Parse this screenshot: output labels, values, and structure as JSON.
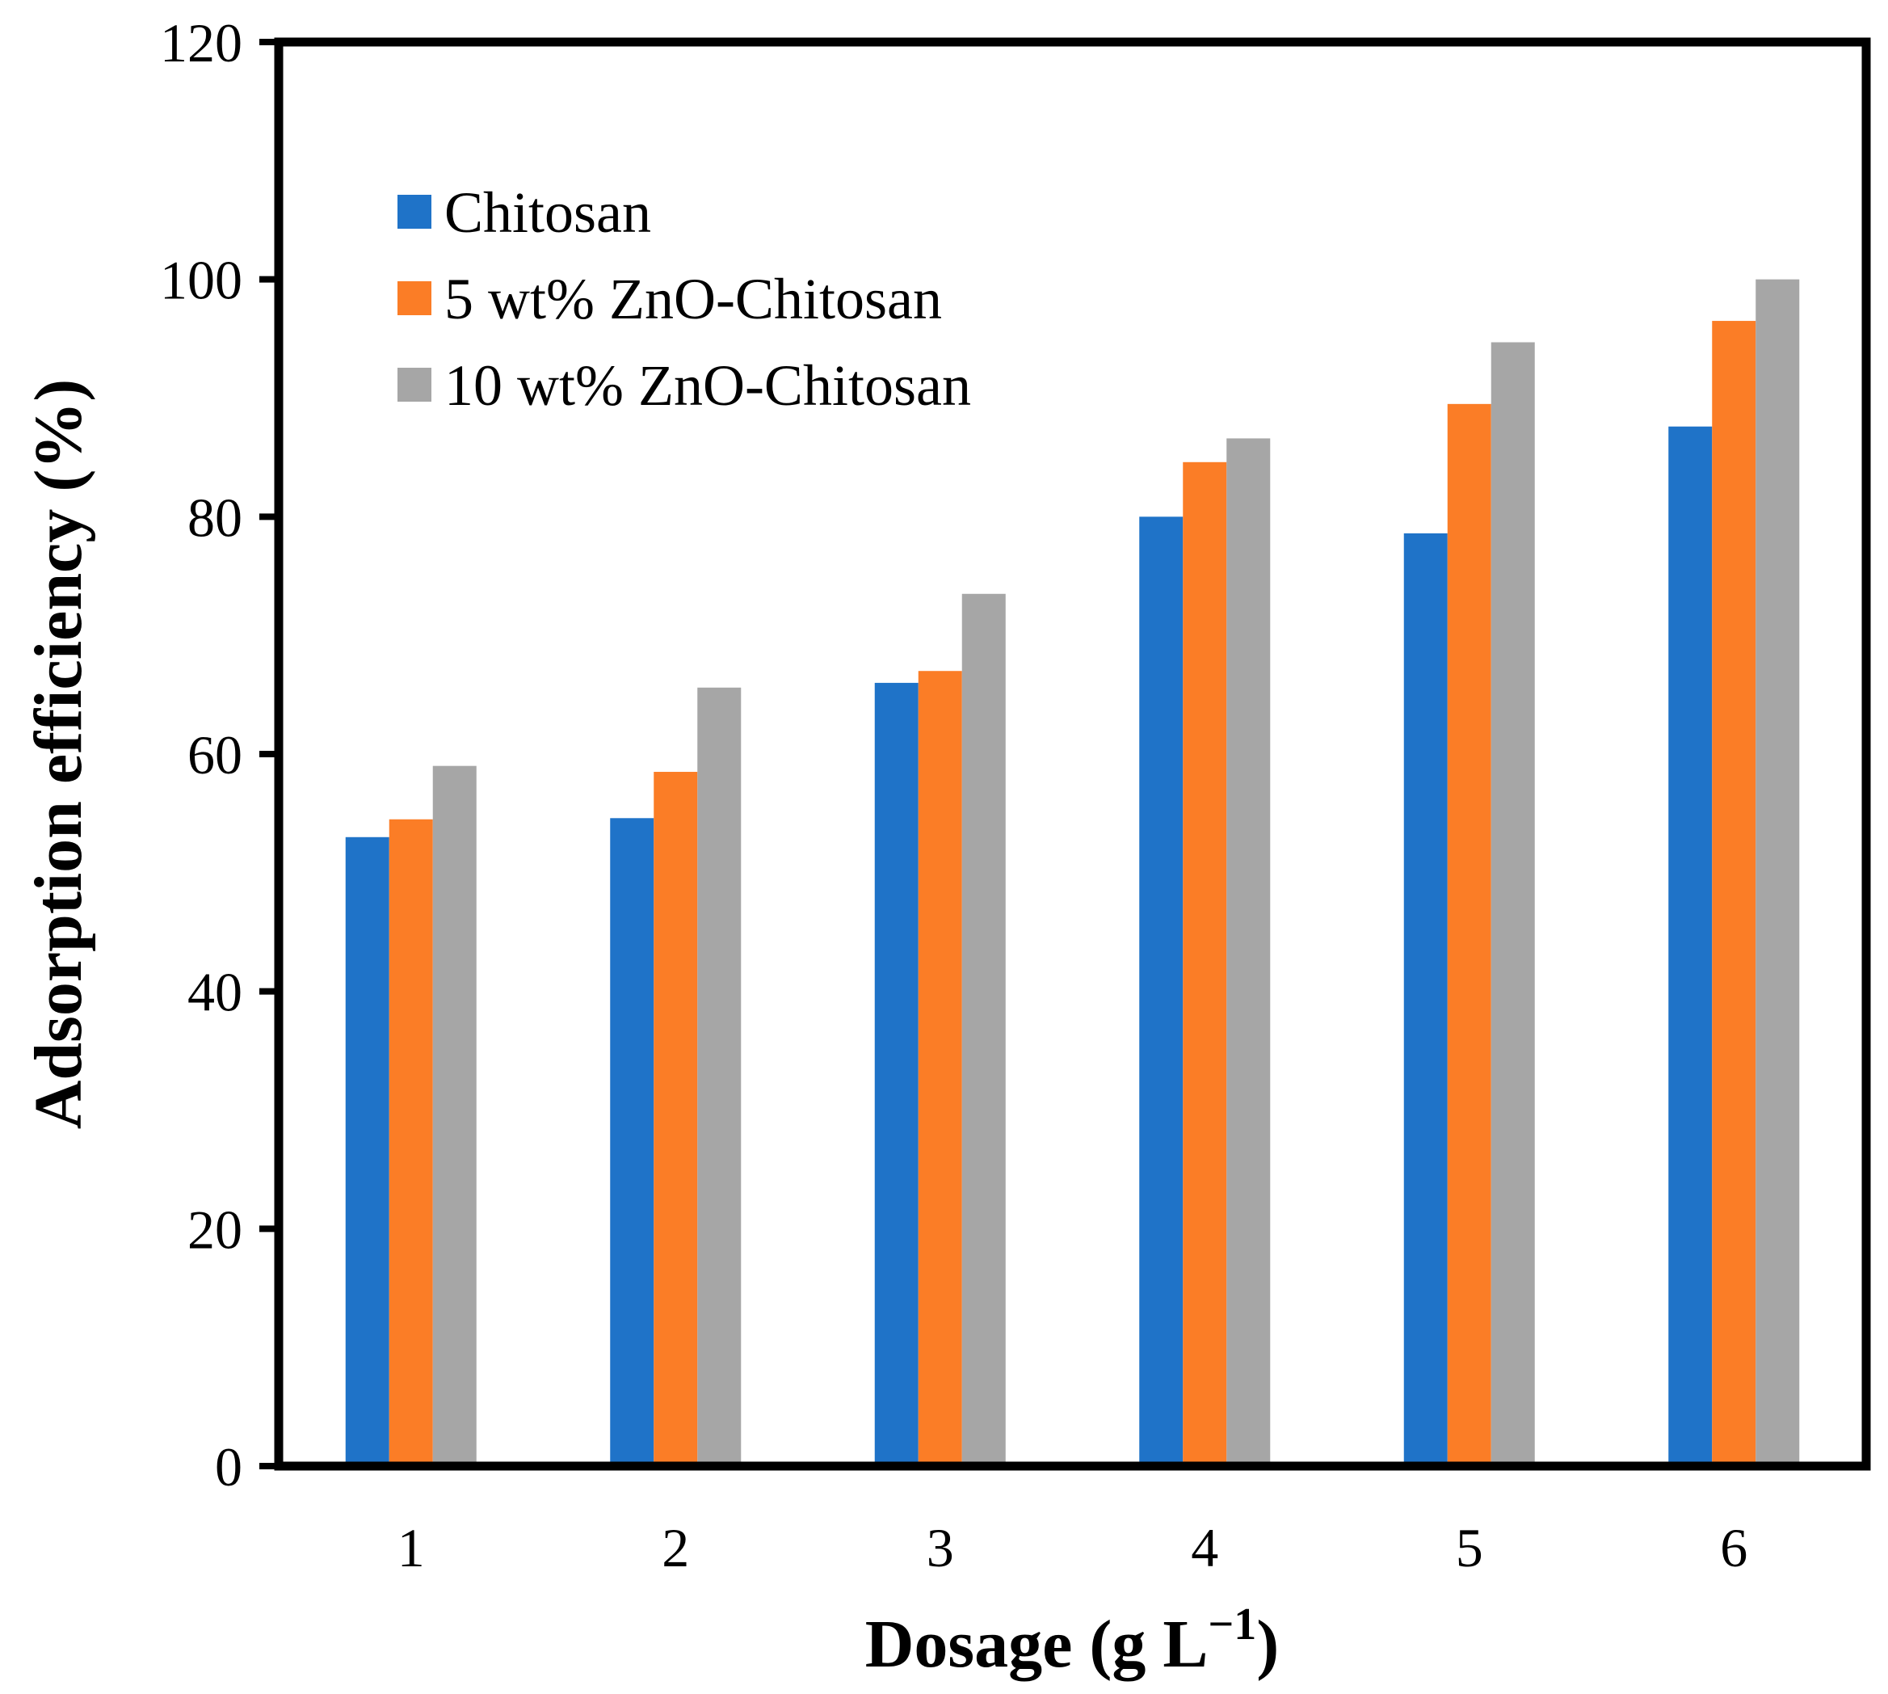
{
  "chart_data": {
    "type": "bar",
    "title": "",
    "xlabel": "Dosage (g L",
    "xlabel_sup": "−1",
    "xlabel_close": ")",
    "ylabel": "Adsorption efficiency (%)",
    "ylim": [
      0,
      120
    ],
    "yticks": [
      "0",
      "20",
      "40",
      "60",
      "80",
      "100",
      "120"
    ],
    "categories": [
      "1",
      "2",
      "3",
      "4",
      "5",
      "6"
    ],
    "grid": false,
    "legend_position": "top-left",
    "series": [
      {
        "name": "Chitosan",
        "color": "#1f73c8",
        "values": [
          53,
          54.6,
          66,
          80,
          78.6,
          87.6
        ]
      },
      {
        "name": "5 wt% ZnO-Chitosan",
        "color": "#fb7d26",
        "values": [
          54.5,
          58.5,
          67,
          84.6,
          89.5,
          96.5
        ]
      },
      {
        "name": "10 wt% ZnO-Chitosan",
        "color": "#a6a6a6",
        "values": [
          59,
          65.6,
          73.5,
          86.6,
          94.7,
          100
        ]
      }
    ]
  }
}
